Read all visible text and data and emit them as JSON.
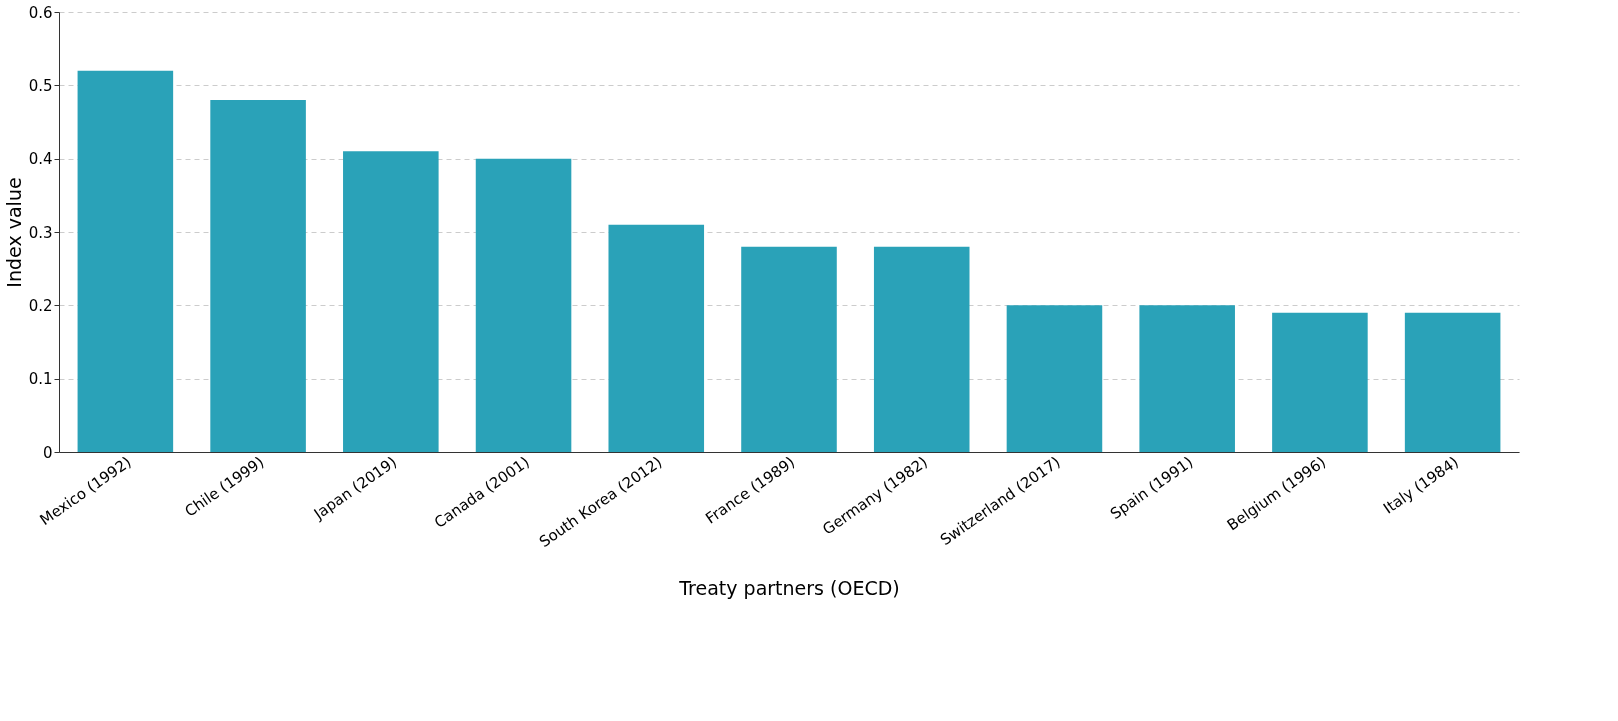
{
  "chart_data": {
    "type": "bar",
    "xlabel": "Treaty partners (OECD)",
    "ylabel": "Index value",
    "categories": [
      "Mexico (1992)",
      "Chile (1999)",
      "Japan (2019)",
      "Canada (2001)",
      "South Korea (2012)",
      "France (1989)",
      "Germany (1982)",
      "Switzerland (2017)",
      "Spain (1991)",
      "Belgium (1996)",
      "Italy (1984)"
    ],
    "values": [
      0.52,
      0.48,
      0.41,
      0.4,
      0.31,
      0.28,
      0.28,
      0.2,
      0.2,
      0.19,
      0.19
    ],
    "color": "#2aa2b8",
    "ylim": [
      0,
      0.6
    ],
    "yticks": [
      0,
      0.1,
      0.2,
      0.3,
      0.4,
      0.5,
      0.6
    ],
    "grid": "y"
  }
}
